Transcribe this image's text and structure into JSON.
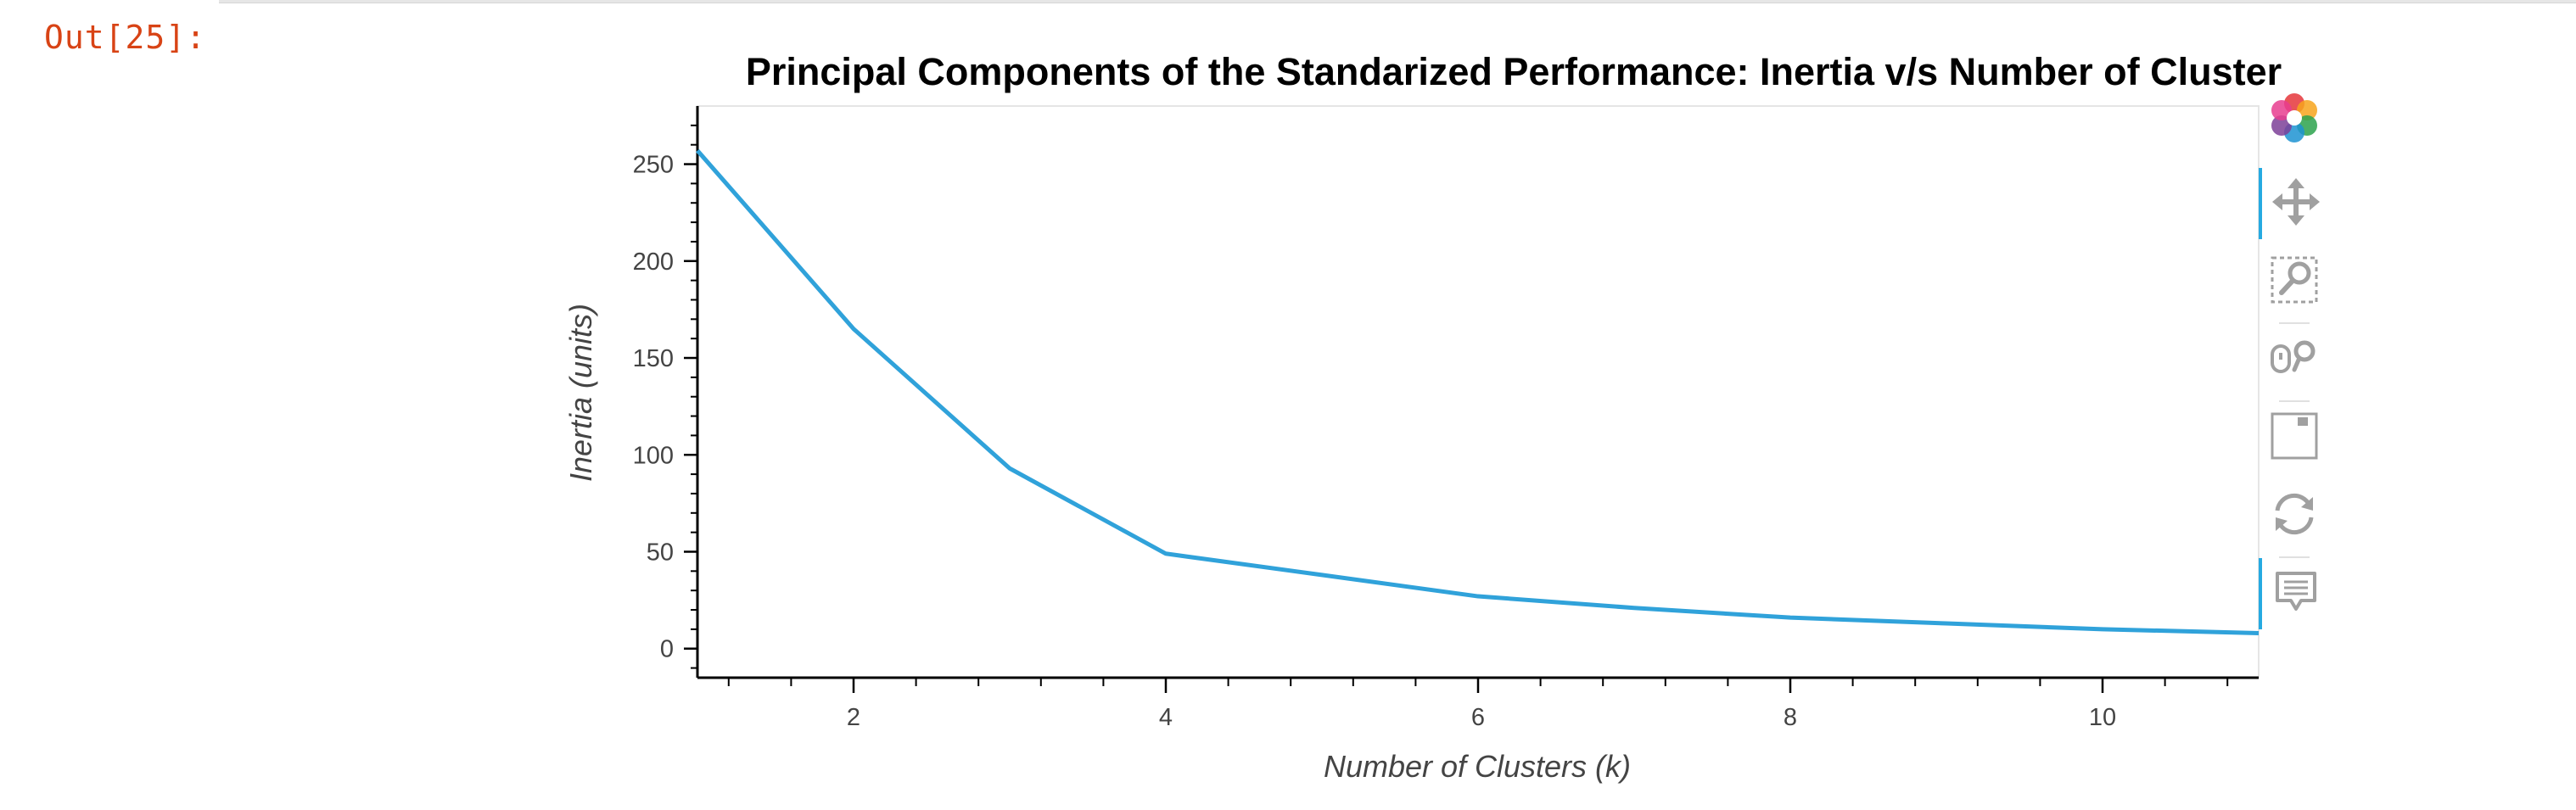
{
  "cell": {
    "prompt": "Out[25]:"
  },
  "colors": {
    "line": "#30a2da",
    "prompt": "#d84315",
    "toolbar_icon": "#a0a0a0",
    "toolbar_active": "#26aae1"
  },
  "toolbar": {
    "items": [
      {
        "name": "bokeh-logo-icon",
        "active": false
      },
      {
        "name": "pan-icon",
        "active": true
      },
      {
        "name": "box-zoom-icon",
        "active": false
      },
      {
        "name": "wheel-zoom-icon",
        "active": false
      },
      {
        "name": "save-icon",
        "active": false
      },
      {
        "name": "reset-icon",
        "active": false
      },
      {
        "name": "hover-icon",
        "active": true
      }
    ]
  },
  "chart_data": {
    "type": "line",
    "title": "Principal Components of the Standarized Performance: Inertia v/s Number of Cluster",
    "xlabel": "Number of Clusters (k)",
    "ylabel": "Inertia (units)",
    "xlim": [
      1,
      11
    ],
    "ylim": [
      -15,
      280
    ],
    "x_ticks": [
      2,
      4,
      6,
      8,
      10
    ],
    "y_ticks": [
      0,
      50,
      100,
      150,
      200,
      250
    ],
    "grid": false,
    "series": [
      {
        "x": [
          1,
          2,
          3,
          4,
          5,
          6,
          7,
          8,
          9,
          10,
          11
        ],
        "values": [
          257,
          165,
          93,
          49,
          38,
          27,
          21,
          16,
          13,
          10,
          8
        ]
      }
    ]
  }
}
